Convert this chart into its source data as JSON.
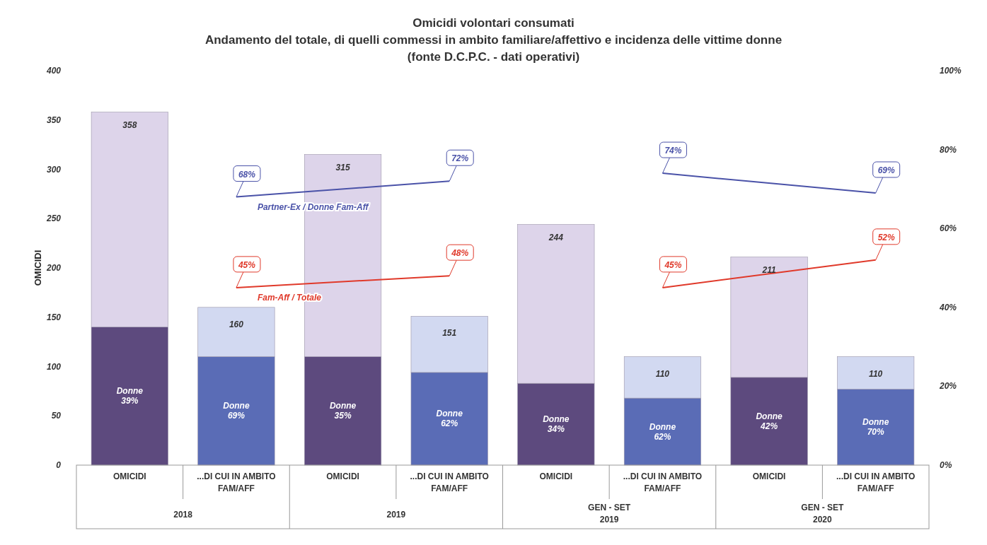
{
  "chart_data": {
    "type": "bar",
    "title": "Omicidi volontari consumati",
    "subtitle": "Andamento del totale, di quelli commessi in ambito familiare/affettivo e incidenza delle vittime donne\n(fonte D.C.P.C. - dati operativi)",
    "ylabel": "OMICIDI",
    "categories": [
      "OMICIDI",
      "...DI CUI IN AMBITO\nFAM/AFF",
      "OMICIDI",
      "...DI CUI IN AMBITO\nFAM/AFF",
      "OMICIDI",
      "...DI CUI IN AMBITO\nFAM/AFF",
      "OMICIDI",
      "...DI CUI IN AMBITO\nFAM/AFF"
    ],
    "stacked": true,
    "ylim": [
      0,
      400
    ],
    "yticks": [
      0,
      50,
      100,
      150,
      200,
      250,
      300,
      350,
      400
    ],
    "y2lim": [
      0,
      100
    ],
    "y2ticks": [
      {
        "value": 0,
        "label": "0%"
      },
      {
        "value": 20,
        "label": "20%"
      },
      {
        "value": 40,
        "label": "40%"
      },
      {
        "value": 60,
        "label": "60%"
      },
      {
        "value": 80,
        "label": "80%"
      },
      {
        "value": 100,
        "label": "100%"
      }
    ],
    "series": [
      {
        "colors": [
          "#5d4a7e",
          "#5a6cb6",
          "#5d4a7e",
          "#5a6cb6",
          "#5d4a7e",
          "#5a6cb6",
          "#5d4a7e",
          "#5a6cb6"
        ],
        "values": [
          140,
          110,
          110,
          94,
          83,
          68,
          89,
          77
        ],
        "value_labels": [
          "Donne\n39%",
          "Donne\n69%",
          "Donne\n35%",
          "Donne\n62%",
          "Donne\n34%",
          "Donne\n62%",
          "Donne\n42%",
          "Donne\n70%"
        ]
      },
      {
        "colors": [
          "#ddd4ea",
          "#d2d9f1",
          "#ddd4ea",
          "#d2d9f1",
          "#ddd4ea",
          "#d2d9f1",
          "#ddd4ea",
          "#d2d9f1"
        ],
        "values": [
          218,
          50,
          205,
          57,
          161,
          42,
          122,
          33
        ]
      },
      {
        "type": "line",
        "axis": "y2",
        "name": "Partner-Ex / Donne Fam-Aff",
        "color": "#4a52a8",
        "values": [
          null,
          68,
          null,
          72,
          null,
          null,
          null,
          null
        ],
        "value_labels": [
          null,
          "68%",
          null,
          "72%",
          null,
          null,
          null,
          null
        ]
      },
      {
        "type": "line",
        "axis": "y2",
        "color": "#4a52a8",
        "values": [
          null,
          null,
          null,
          null,
          null,
          74,
          null,
          69
        ],
        "value_labels": [
          null,
          null,
          null,
          null,
          null,
          "74%",
          null,
          "69%"
        ]
      },
      {
        "type": "line",
        "axis": "y2",
        "name": "Fam-Aff / Totale",
        "color": "#e0392a",
        "values": [
          null,
          45,
          null,
          48,
          null,
          null,
          null,
          null
        ],
        "value_labels": [
          null,
          "45%",
          null,
          "48%",
          null,
          null,
          null,
          null
        ]
      },
      {
        "type": "line",
        "axis": "y2",
        "color": "#e0392a",
        "values": [
          null,
          null,
          null,
          null,
          null,
          45,
          null,
          52
        ],
        "value_labels": [
          null,
          null,
          null,
          null,
          null,
          "45%",
          null,
          "52%"
        ]
      }
    ],
    "totals": [
      "358",
      "160",
      "315",
      "151",
      "244",
      "110",
      "211",
      "110"
    ],
    "annotations": [
      "2018",
      "2019",
      "GEN - SET\n2019",
      "GEN - SET\n2020"
    ],
    "grid": false
  }
}
